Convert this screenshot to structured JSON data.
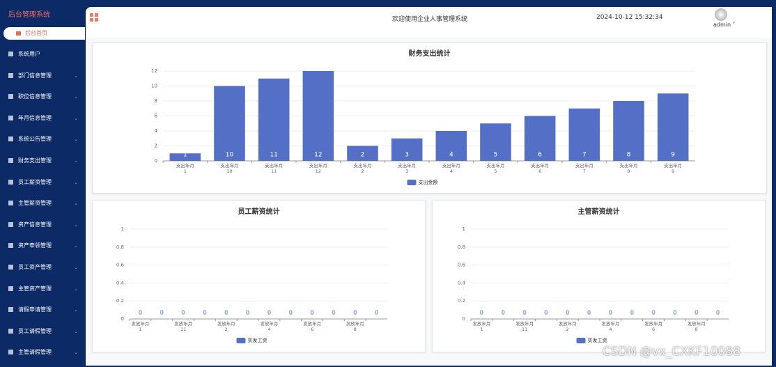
{
  "sidebar": {
    "title": "后台管理系统",
    "active": "后台首页",
    "menu": [
      "系统用户",
      "部门信息管理",
      "职位信息管理",
      "年月信息管理",
      "系统公告管理",
      "财务支出管理",
      "员工薪资管理",
      "主管薪资管理",
      "资产信息管理",
      "资产申领管理",
      "员工资产管理",
      "主管资产管理",
      "请假申请管理",
      "员工请假管理",
      "主管请假管理"
    ]
  },
  "header": {
    "welcome": "欢迎使用企业人事管理系统",
    "datetime": "2024-10-12 15:32:34",
    "user": "admin"
  },
  "watermark": "CSDN @vx_CXKF10088",
  "chart_data": [
    {
      "type": "bar",
      "title": "财务支出统计",
      "categories": [
        "支出年月\n1",
        "支出年月\n10",
        "支出年月\n11",
        "支出年月\n12",
        "支出年月\n2",
        "支出年月\n3",
        "支出年月\n4",
        "支出年月\n5",
        "支出年月\n6",
        "支出年月\n7",
        "支出年月\n8",
        "支出年月\n9"
      ],
      "series": [
        {
          "name": "支出金额",
          "color": "#5470c6",
          "values": [
            1,
            10,
            11,
            12,
            2,
            3,
            4,
            5,
            6,
            7,
            8,
            9
          ]
        }
      ],
      "ylim": [
        0,
        12
      ],
      "yticks": [
        0,
        2,
        4,
        6,
        8,
        10,
        12
      ],
      "grid": true
    },
    {
      "type": "bar",
      "title": "员工薪资统计",
      "categories": [
        "发放年月\n1",
        null,
        "发放年月\n11",
        null,
        "发放年月\n2",
        null,
        "发放年月\n4",
        null,
        "发放年月\n6",
        null,
        "发放年月\n8",
        null
      ],
      "series": [
        {
          "name": "实发工资",
          "color": "#5470c6",
          "values": [
            0,
            0,
            0,
            0,
            0,
            0,
            0,
            0,
            0,
            0,
            0,
            0
          ]
        }
      ],
      "ylim": [
        0,
        1
      ],
      "yticks": [
        0,
        0.2,
        0.4,
        0.6,
        0.8,
        1
      ],
      "grid": true
    },
    {
      "type": "bar",
      "title": "主管薪资统计",
      "categories": [
        "发放年月\n1",
        null,
        "发放年月\n11",
        null,
        "发放年月\n2",
        null,
        "发放年月\n4",
        null,
        "发放年月\n6",
        null,
        "发放年月\n8",
        null
      ],
      "series": [
        {
          "name": "实发工资",
          "color": "#5470c6",
          "values": [
            0,
            0,
            0,
            0,
            0,
            0,
            0,
            0,
            0,
            0,
            0,
            0
          ]
        }
      ],
      "ylim": [
        0,
        1
      ],
      "yticks": [
        0,
        0.2,
        0.4,
        0.6,
        0.8,
        1
      ],
      "grid": true
    }
  ]
}
